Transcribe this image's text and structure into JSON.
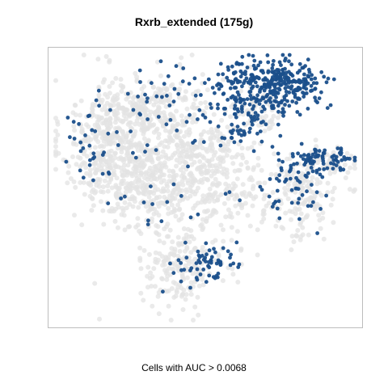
{
  "chart_data": {
    "type": "scatter",
    "title": "Rxrb_extended (175g)",
    "xlabel": "Cells with AUC > 0.0068",
    "ylabel": "",
    "grid": false,
    "legend": "none",
    "colors": {
      "background_cells": "#e3e3e3",
      "highlighted_cells": "#1a4f8b",
      "frame": "#bdbdbd"
    },
    "xlim": [
      0,
      1
    ],
    "ylim": [
      0,
      1
    ],
    "background_clusters": [
      {
        "cx": 0.18,
        "cy": 0.67,
        "sx": 0.08,
        "sy": 0.12,
        "n": 380
      },
      {
        "cx": 0.3,
        "cy": 0.52,
        "sx": 0.09,
        "sy": 0.09,
        "n": 300
      },
      {
        "cx": 0.43,
        "cy": 0.68,
        "sx": 0.07,
        "sy": 0.12,
        "n": 260
      },
      {
        "cx": 0.55,
        "cy": 0.52,
        "sx": 0.07,
        "sy": 0.12,
        "n": 230
      },
      {
        "cx": 0.28,
        "cy": 0.8,
        "sx": 0.07,
        "sy": 0.05,
        "n": 150
      },
      {
        "cx": 0.42,
        "cy": 0.2,
        "sx": 0.07,
        "sy": 0.07,
        "n": 190
      },
      {
        "cx": 0.81,
        "cy": 0.46,
        "sx": 0.07,
        "sy": 0.08,
        "n": 160
      },
      {
        "cx": 0.68,
        "cy": 0.8,
        "sx": 0.05,
        "sy": 0.06,
        "n": 80
      },
      {
        "cx": 0.92,
        "cy": 0.6,
        "sx": 0.04,
        "sy": 0.03,
        "n": 50
      }
    ],
    "highlight_clusters": [
      {
        "cx": 0.67,
        "cy": 0.87,
        "sx": 0.09,
        "sy": 0.06,
        "n": 240
      },
      {
        "cx": 0.79,
        "cy": 0.9,
        "sx": 0.06,
        "sy": 0.04,
        "n": 120
      },
      {
        "cx": 0.61,
        "cy": 0.72,
        "sx": 0.06,
        "sy": 0.04,
        "n": 45
      },
      {
        "cx": 0.87,
        "cy": 0.6,
        "sx": 0.05,
        "sy": 0.03,
        "n": 60
      },
      {
        "cx": 0.97,
        "cy": 0.61,
        "sx": 0.02,
        "sy": 0.02,
        "n": 18
      },
      {
        "cx": 0.79,
        "cy": 0.5,
        "sx": 0.05,
        "sy": 0.06,
        "n": 40
      },
      {
        "cx": 0.51,
        "cy": 0.21,
        "sx": 0.05,
        "sy": 0.03,
        "n": 55
      },
      {
        "cx": 0.1,
        "cy": 0.66,
        "sx": 0.05,
        "sy": 0.07,
        "n": 28
      },
      {
        "cx": 0.35,
        "cy": 0.85,
        "sx": 0.05,
        "sy": 0.06,
        "n": 22
      }
    ],
    "highlight_sparse": {
      "n": 75
    },
    "point_counts": {
      "background": 1800,
      "highlighted": 703
    }
  }
}
